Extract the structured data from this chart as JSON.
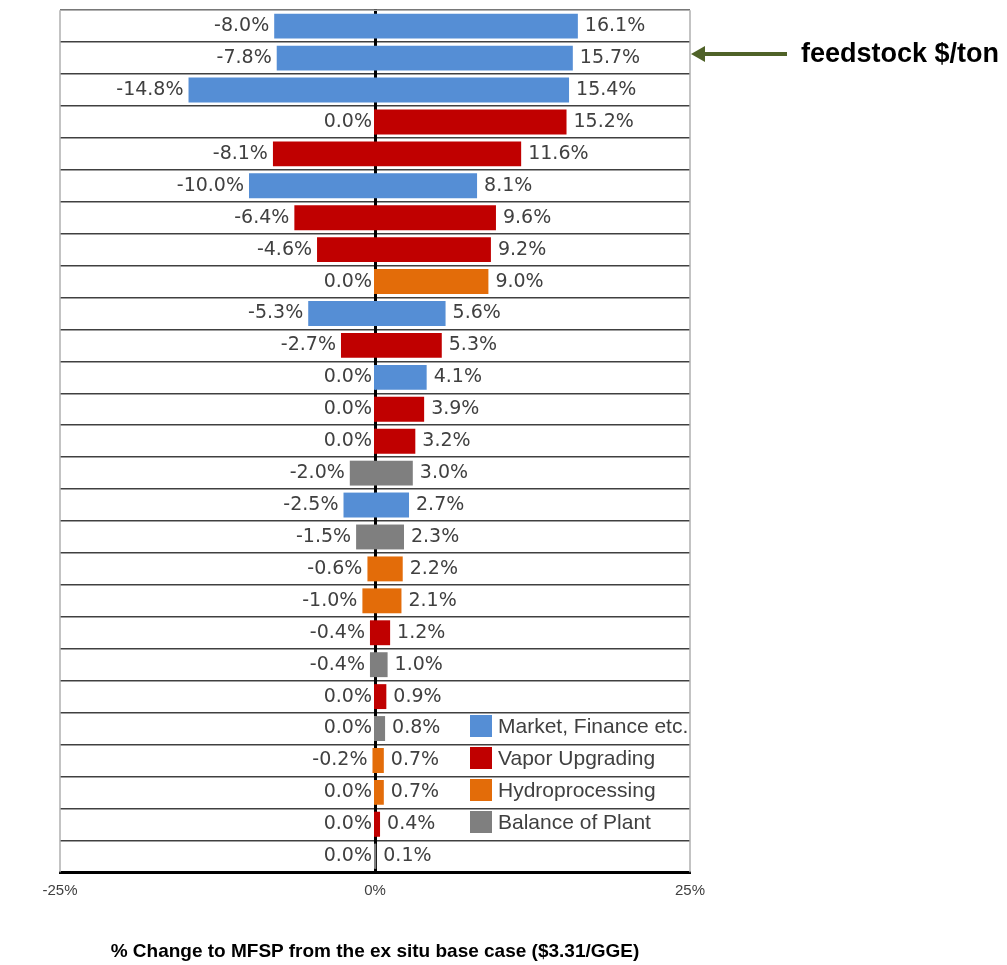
{
  "chart_data": {
    "type": "bar",
    "orientation": "horizontal",
    "stacked": true,
    "categories": [
      null,
      null,
      null,
      null,
      null,
      null,
      null,
      null,
      null,
      null,
      null,
      null,
      null,
      null,
      null,
      null,
      null,
      null,
      null,
      null,
      null,
      null,
      null,
      null,
      null,
      null,
      null
    ],
    "xlim": [
      -25,
      25
    ],
    "xticks": [
      {
        "value": -25,
        "label": "-25%"
      },
      {
        "value": 0,
        "label": "0%"
      },
      {
        "value": 25,
        "label": "25%"
      }
    ],
    "xlabel": "% Change to MFSP from the ex situ base case ($3.31/GGE)",
    "grid": "y",
    "legend": "bottom right",
    "annotations": [
      "feedstock $/ton"
    ],
    "series": [
      {
        "color": "#558ed5",
        "values": [
          -8.0,
          -7.8,
          -14.8,
          null,
          null,
          -10.0,
          null,
          null,
          null,
          -5.3,
          null,
          0.0,
          null,
          null,
          null,
          -2.5,
          null,
          null,
          null,
          null,
          null,
          null,
          null,
          null,
          null,
          null,
          null
        ],
        "value_labels": [
          "-8.0%",
          "-7.8%",
          "-14.8%",
          null,
          null,
          "-10.0%",
          null,
          null,
          null,
          "-5.3%",
          null,
          "0.0%",
          null,
          null,
          null,
          "-2.5%",
          null,
          null,
          null,
          null,
          null,
          null,
          null,
          null,
          null,
          null,
          null
        ]
      },
      {
        "color": "#c00000",
        "values": [
          null,
          null,
          null,
          0.0,
          -8.1,
          null,
          -6.4,
          -4.6,
          null,
          null,
          -2.7,
          null,
          0.0,
          0.0,
          null,
          null,
          null,
          null,
          null,
          -0.4,
          null,
          0.0,
          null,
          null,
          null,
          0.0,
          null
        ],
        "value_labels": [
          null,
          null,
          null,
          "0.0%",
          "-8.1%",
          null,
          "-6.4%",
          "-4.6%",
          null,
          null,
          "-2.7%",
          null,
          "0.0%",
          "0.0%",
          null,
          null,
          null,
          null,
          null,
          "-0.4%",
          null,
          "0.0%",
          null,
          null,
          null,
          "0.0%",
          null
        ]
      },
      {
        "color": "#e36c09",
        "values": [
          null,
          null,
          null,
          null,
          null,
          null,
          null,
          null,
          0.0,
          null,
          null,
          null,
          null,
          null,
          null,
          null,
          null,
          -0.6,
          -1.0,
          null,
          null,
          null,
          null,
          -0.2,
          0.0,
          null,
          null
        ],
        "value_labels": [
          null,
          null,
          null,
          null,
          null,
          null,
          null,
          null,
          "0.0%",
          null,
          null,
          null,
          null,
          null,
          null,
          null,
          null,
          "-0.6%",
          "-1.0%",
          null,
          null,
          null,
          null,
          "-0.2%",
          "0.0%",
          null,
          null
        ]
      },
      {
        "color": "#7f7f7f",
        "values": [
          null,
          null,
          null,
          null,
          null,
          null,
          null,
          null,
          null,
          null,
          null,
          null,
          null,
          null,
          -2.0,
          null,
          -1.5,
          null,
          null,
          null,
          -0.4,
          null,
          0.0,
          null,
          null,
          null,
          0.0
        ],
        "value_labels": [
          null,
          null,
          null,
          null,
          null,
          null,
          null,
          null,
          null,
          null,
          null,
          null,
          null,
          null,
          "-2.0%",
          null,
          "-1.5%",
          null,
          null,
          null,
          "-0.4%",
          null,
          "0.0%",
          null,
          null,
          null,
          "0.0%"
        ]
      },
      {
        "name": "Market, Finance etc.",
        "color": "#558ed5",
        "values": [
          16.1,
          15.7,
          15.4,
          null,
          null,
          8.1,
          null,
          null,
          null,
          5.6,
          null,
          4.1,
          null,
          null,
          null,
          2.7,
          null,
          null,
          null,
          null,
          null,
          null,
          null,
          null,
          null,
          null,
          null
        ],
        "value_labels": [
          "16.1%",
          "15.7%",
          "15.4%",
          null,
          null,
          "8.1%",
          null,
          null,
          null,
          "5.6%",
          null,
          "4.1%",
          null,
          null,
          null,
          "2.7%",
          null,
          null,
          null,
          null,
          null,
          null,
          null,
          null,
          null,
          null,
          null
        ]
      },
      {
        "name": "Vapor Upgrading",
        "color": "#c00000",
        "values": [
          null,
          null,
          null,
          15.2,
          11.6,
          null,
          9.6,
          9.2,
          null,
          null,
          5.3,
          null,
          3.9,
          3.2,
          null,
          null,
          null,
          null,
          null,
          1.2,
          null,
          0.9,
          null,
          null,
          null,
          0.4,
          null
        ],
        "value_labels": [
          null,
          null,
          null,
          "15.2%",
          "11.6%",
          null,
          "9.6%",
          "9.2%",
          null,
          null,
          "5.3%",
          null,
          "3.9%",
          "3.2%",
          null,
          null,
          null,
          null,
          null,
          "1.2%",
          null,
          "0.9%",
          null,
          null,
          null,
          "0.4%",
          null
        ]
      },
      {
        "name": "Hydroprocessing",
        "color": "#e36c09",
        "values": [
          null,
          null,
          null,
          null,
          null,
          null,
          null,
          null,
          9.0,
          null,
          null,
          null,
          null,
          null,
          null,
          null,
          null,
          2.2,
          2.1,
          null,
          null,
          null,
          null,
          0.7,
          0.7,
          null,
          null
        ],
        "value_labels": [
          null,
          null,
          null,
          null,
          null,
          null,
          null,
          null,
          "9.0%",
          null,
          null,
          null,
          null,
          null,
          null,
          null,
          null,
          "2.2%",
          "2.1%",
          null,
          null,
          null,
          null,
          "0.7%",
          "0.7%",
          null,
          null
        ]
      },
      {
        "name": "Balance of Plant",
        "color": "#7f7f7f",
        "values": [
          null,
          null,
          null,
          null,
          null,
          null,
          null,
          null,
          null,
          null,
          null,
          null,
          null,
          null,
          3.0,
          null,
          2.3,
          null,
          null,
          null,
          1.0,
          null,
          0.8,
          null,
          null,
          null,
          0.1
        ],
        "value_labels": [
          null,
          null,
          null,
          null,
          null,
          null,
          null,
          null,
          null,
          null,
          null,
          null,
          null,
          null,
          "3.0%",
          null,
          "2.3%",
          null,
          null,
          null,
          "1.0%",
          null,
          "0.8%",
          null,
          null,
          null,
          "0.1%"
        ]
      }
    ]
  }
}
